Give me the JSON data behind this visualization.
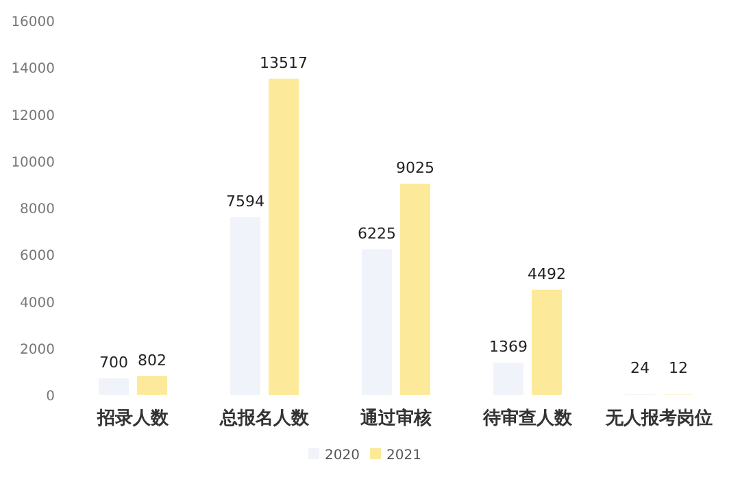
{
  "chart_data": {
    "type": "bar",
    "categories": [
      "招录人数",
      "总报名人数",
      "通过审核",
      "待审查人数",
      "无人报考岗位"
    ],
    "series": [
      {
        "name": "2020",
        "color": "#f0f3f9",
        "values": [
          700,
          7594,
          6225,
          1369,
          24
        ]
      },
      {
        "name": "2021",
        "color": "#fcea9a",
        "values": [
          802,
          13517,
          9025,
          4492,
          12
        ]
      }
    ],
    "ylim": [
      0,
      16000
    ],
    "yticks": [
      0,
      2000,
      4000,
      6000,
      8000,
      10000,
      12000,
      14000,
      16000
    ],
    "data_labels": true,
    "legend": "bottom",
    "grid": false
  }
}
